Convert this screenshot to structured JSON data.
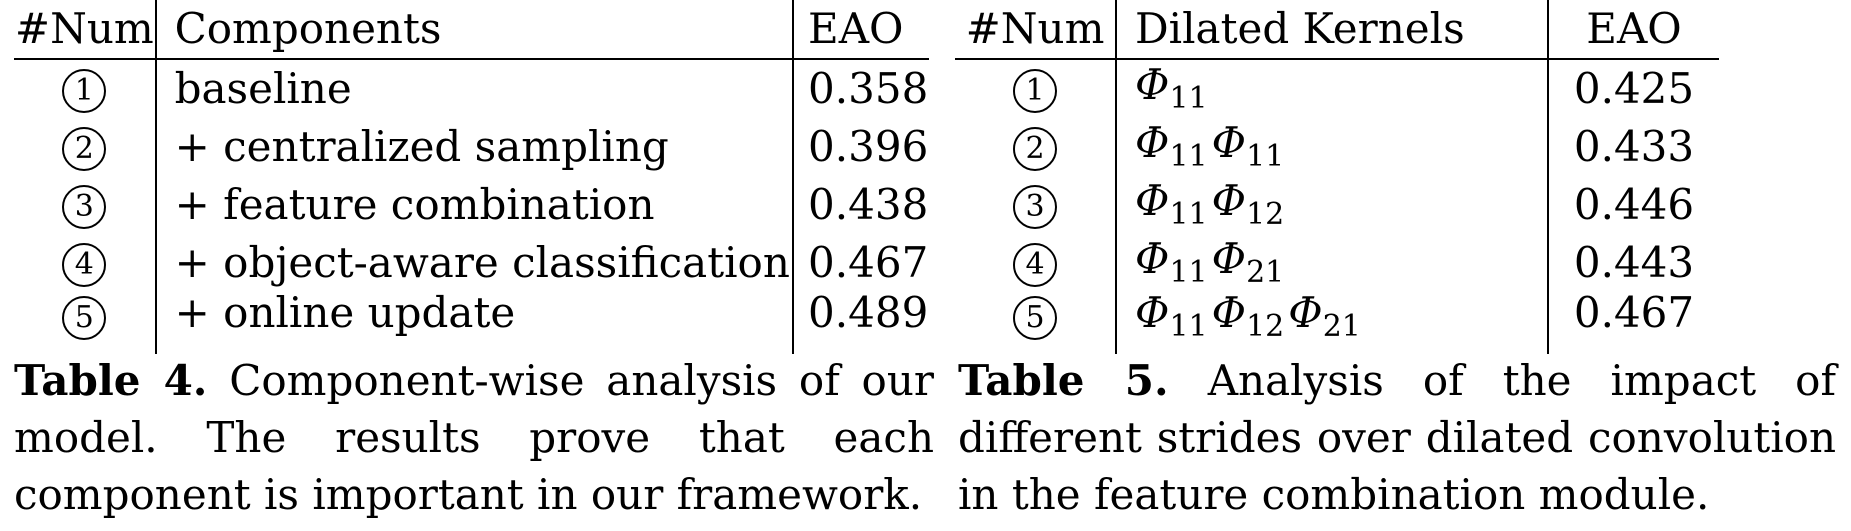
{
  "table4": {
    "headers": {
      "num": "#Num",
      "components": "Components",
      "eao": "EAO"
    },
    "rows": [
      {
        "num": "1",
        "component": "baseline",
        "eao": "0.358"
      },
      {
        "num": "2",
        "component": "+ centralized sampling",
        "eao": "0.396"
      },
      {
        "num": "3",
        "component": "+ feature combination",
        "eao": "0.438"
      },
      {
        "num": "4",
        "component": "+ object-aware classification",
        "eao": "0.467"
      },
      {
        "num": "5",
        "component": "+ online update",
        "eao": "0.489"
      }
    ],
    "caption_label": "Table 4.",
    "caption_text": "Component-wise analysis of our model. The results prove that each component is important in our framework."
  },
  "table5": {
    "headers": {
      "num": "#Num",
      "kernels": "Dilated Kernels",
      "eao": "EAO"
    },
    "kernel_symbol": "Φ",
    "rows": [
      {
        "num": "1",
        "subs": [
          "11"
        ],
        "eao": "0.425"
      },
      {
        "num": "2",
        "subs": [
          "11",
          "11"
        ],
        "eao": "0.433"
      },
      {
        "num": "3",
        "subs": [
          "11",
          "12"
        ],
        "eao": "0.446"
      },
      {
        "num": "4",
        "subs": [
          "11",
          "21"
        ],
        "eao": "0.443"
      },
      {
        "num": "5",
        "subs": [
          "11",
          "12",
          "21"
        ],
        "eao": "0.467"
      }
    ],
    "caption_label": "Table 5.",
    "caption_text": "Analysis of the impact of different strides over dilated convolution in the feature combination module."
  }
}
